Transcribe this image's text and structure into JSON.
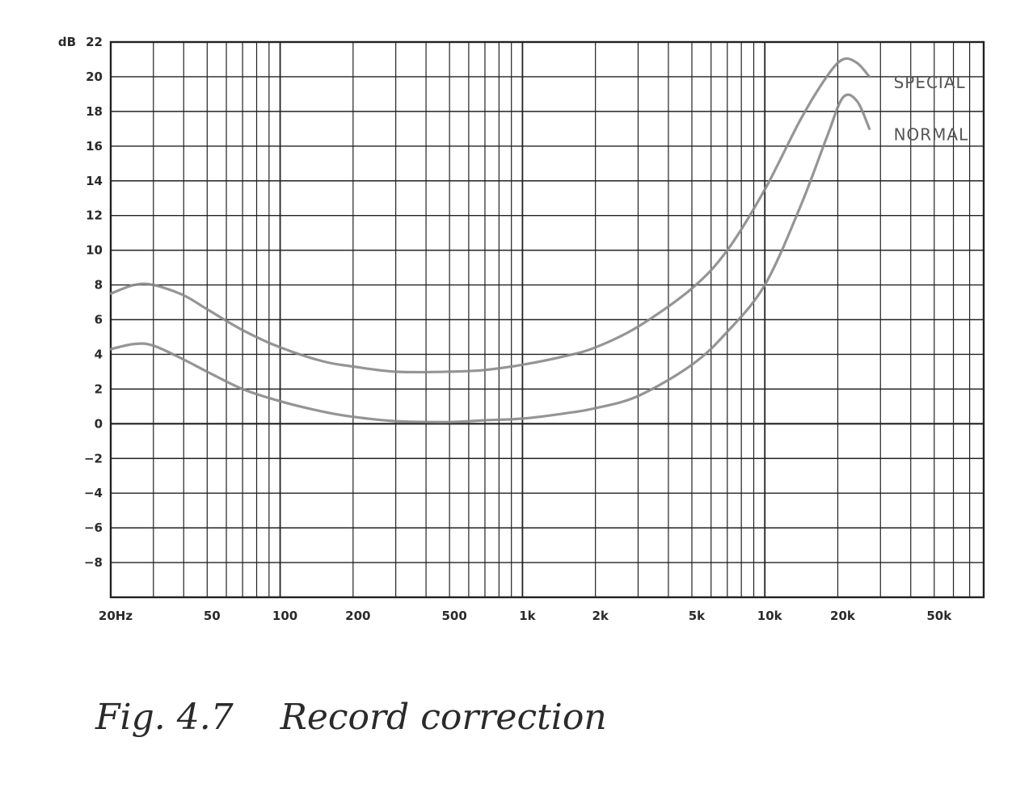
{
  "figure": {
    "number": "Fig. 4.7",
    "title": "Record correction"
  },
  "chart_data": {
    "type": "line",
    "xscale": "log",
    "xlim": [
      20,
      80000
    ],
    "ylim": [
      -10,
      22
    ],
    "ylabel": "dB",
    "grid": true,
    "yticks": [
      22,
      20,
      18,
      16,
      14,
      12,
      10,
      8,
      6,
      4,
      2,
      0,
      -2,
      -4,
      -6,
      -8
    ],
    "yticklabels": [
      "22",
      "20",
      "18",
      "16",
      "14",
      "12",
      "10",
      "8",
      "6",
      "4",
      "2",
      "0",
      "−2",
      "−4",
      "−6",
      "−8"
    ],
    "xticks": [
      20,
      50,
      100,
      200,
      500,
      1000,
      2000,
      5000,
      10000,
      20000,
      50000
    ],
    "xticklabels": [
      "20Hz",
      "50",
      "100",
      "200",
      "500",
      "1k",
      "2k",
      "5k",
      "10k",
      "20k",
      "50k"
    ],
    "series": [
      {
        "name": "SPECIAL",
        "color": "#8a8a8a",
        "x": [
          20,
          25,
          30,
          40,
          50,
          70,
          100,
          150,
          200,
          300,
          500,
          700,
          1000,
          1500,
          2000,
          3000,
          5000,
          7000,
          10000,
          14000,
          18000,
          21000,
          24000,
          27000
        ],
        "y": [
          7.5,
          8.0,
          8.0,
          7.4,
          6.6,
          5.4,
          4.4,
          3.6,
          3.3,
          3.0,
          3.0,
          3.1,
          3.4,
          3.9,
          4.4,
          5.6,
          7.8,
          10.0,
          13.5,
          17.5,
          20.0,
          21.0,
          20.8,
          20.0
        ]
      },
      {
        "name": "NORMAL",
        "color": "#8a8a8a",
        "x": [
          20,
          25,
          30,
          40,
          50,
          70,
          100,
          150,
          200,
          300,
          500,
          700,
          1000,
          1500,
          2000,
          3000,
          5000,
          7000,
          10000,
          14000,
          18000,
          21000,
          24000,
          27000
        ],
        "y": [
          4.3,
          4.6,
          4.5,
          3.7,
          3.0,
          2.0,
          1.3,
          0.7,
          0.4,
          0.15,
          0.1,
          0.2,
          0.3,
          0.6,
          0.9,
          1.6,
          3.4,
          5.3,
          8.0,
          12.5,
          16.5,
          18.8,
          18.6,
          17.0
        ]
      }
    ]
  }
}
